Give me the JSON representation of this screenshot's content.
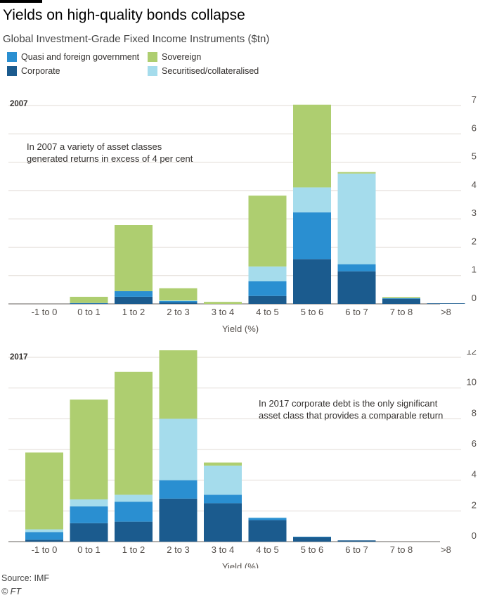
{
  "title": "Yields on high-quality bonds collapse",
  "subtitle": "Global Investment-Grade Fixed Income Instruments ($tn)",
  "legend": {
    "corporate": "Corporate",
    "quasi": "Quasi and foreign government",
    "securitised": "Securitised/collateralised",
    "sovereign": "Sovereign"
  },
  "colors": {
    "corporate": "#1b5b8e",
    "quasi": "#2a8fd1",
    "securitised": "#a5dcec",
    "sovereign": "#aece70"
  },
  "source": "Source: IMF",
  "copyright": "© FT",
  "chart_data": [
    {
      "type": "bar",
      "stacked": true,
      "title": "2007",
      "xlabel": "Yield (%)",
      "ylabel": "",
      "ylim": [
        0,
        7
      ],
      "yticks": [
        0,
        1,
        2,
        3,
        4,
        5,
        6,
        7
      ],
      "categories": [
        "-1 to 0",
        "0 to 1",
        "1 to 2",
        "2 to 3",
        "3 to 4",
        "4 to 5",
        "5 to 6",
        "6 to 7",
        "7 to 8",
        ">8"
      ],
      "series": [
        {
          "key": "corporate",
          "name": "Corporate",
          "values": [
            0,
            0.02,
            0.25,
            0.05,
            0,
            0.28,
            1.58,
            1.15,
            0.18,
            0.02
          ]
        },
        {
          "key": "quasi",
          "name": "Quasi and foreign government",
          "values": [
            0,
            0.01,
            0.2,
            0.05,
            0,
            0.52,
            1.65,
            0.25,
            0.02,
            0
          ]
        },
        {
          "key": "securitised",
          "name": "Securitised/collateralised",
          "values": [
            0,
            0,
            0,
            0.02,
            0,
            0.52,
            0.88,
            3.2,
            0,
            0
          ]
        },
        {
          "key": "sovereign",
          "name": "Sovereign",
          "values": [
            0,
            0.22,
            2.33,
            0.43,
            0.07,
            2.5,
            2.92,
            0.05,
            0.04,
            0
          ]
        }
      ],
      "annotation": [
        "In 2007 a variety of asset classes",
        "generated returns in excess of 4 per cent"
      ]
    },
    {
      "type": "bar",
      "stacked": true,
      "title": "2017",
      "xlabel": "Yield (%)",
      "ylabel": "",
      "ylim": [
        0,
        12
      ],
      "yticks": [
        0,
        2,
        4,
        6,
        8,
        10,
        12
      ],
      "categories": [
        "-1 to 0",
        "0 to 1",
        "1 to 2",
        "2 to 3",
        "3 to 4",
        "4 to 5",
        "5 to 6",
        "6 to 7",
        "7 to 8",
        ">8"
      ],
      "series": [
        {
          "key": "corporate",
          "name": "Corporate",
          "values": [
            0.12,
            1.2,
            1.3,
            2.8,
            2.5,
            1.4,
            0.3,
            0.08,
            0,
            0
          ]
        },
        {
          "key": "quasi",
          "name": "Quasi and foreign government",
          "values": [
            0.5,
            1.1,
            1.3,
            1.2,
            0.55,
            0.15,
            0.02,
            0,
            0,
            0
          ]
        },
        {
          "key": "securitised",
          "name": "Securitised/collateralised",
          "values": [
            0.18,
            0.45,
            0.45,
            4.0,
            1.9,
            0.02,
            0,
            0,
            0,
            0
          ]
        },
        {
          "key": "sovereign",
          "name": "Sovereign",
          "values": [
            5.0,
            6.5,
            8.0,
            4.9,
            0.2,
            0,
            0,
            0,
            0,
            0
          ]
        }
      ],
      "annotation": [
        "In 2017 corporate debt is the only significant",
        "asset class that provides a comparable return"
      ]
    }
  ]
}
